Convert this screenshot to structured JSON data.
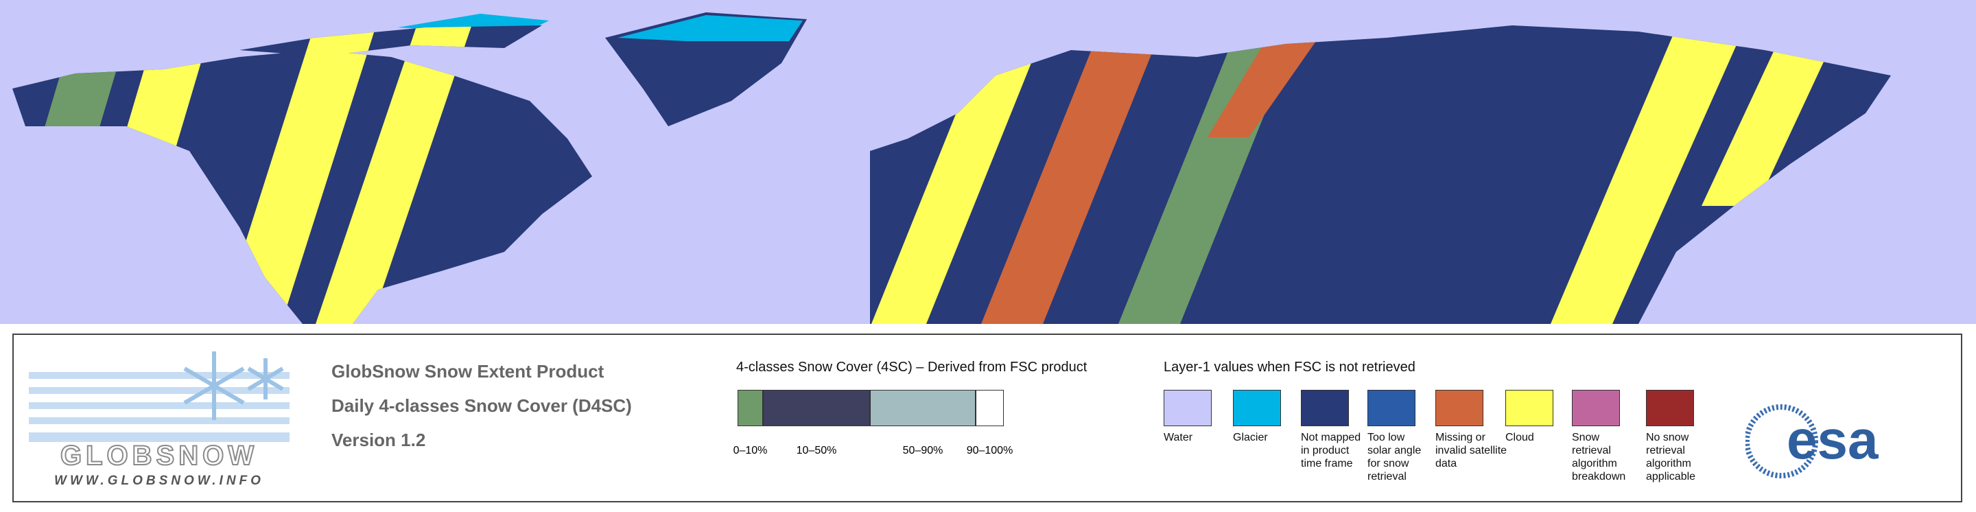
{
  "logo": {
    "name": "GLOBSNOW",
    "url": "WWW.GLOBSNOW.INFO"
  },
  "product": {
    "lines": [
      "GlobSnow Snow Extent Product",
      "Daily 4-classes Snow Cover (D4SC)",
      "Version 1.2"
    ]
  },
  "fsc_legend": {
    "title": "4-classes Snow Cover (4SC) – Derived from FSC product",
    "classes": [
      {
        "label": "0–10%",
        "color": "#6f9a6a"
      },
      {
        "label": "10–50%",
        "color": "#3f3f5f"
      },
      {
        "label": "50–90%",
        "color": "#a3bcc0"
      },
      {
        "label": "90–100%",
        "color": "#ffffff"
      }
    ]
  },
  "layer1_legend": {
    "title": "Layer-1 values when FSC is not retrieved",
    "classes": [
      {
        "label": "Water",
        "color": "#c8c8fa"
      },
      {
        "label": "Glacier",
        "color": "#00b4e6"
      },
      {
        "label": "Not mapped in product time frame",
        "color": "#283a78"
      },
      {
        "label": "Too low solar angle for snow retrieval",
        "color": "#2a5ca8"
      },
      {
        "label": "Missing or invalid satellite data",
        "color": "#d0663c"
      },
      {
        "label": "Cloud",
        "color": "#ffff5a"
      },
      {
        "label": "Snow retrieval algorithm breakdown",
        "color": "#c0669e"
      },
      {
        "label": "No snow retrieval algorithm applicable",
        "color": "#9a2a2a"
      }
    ]
  },
  "agency": {
    "logo": "esa"
  }
}
